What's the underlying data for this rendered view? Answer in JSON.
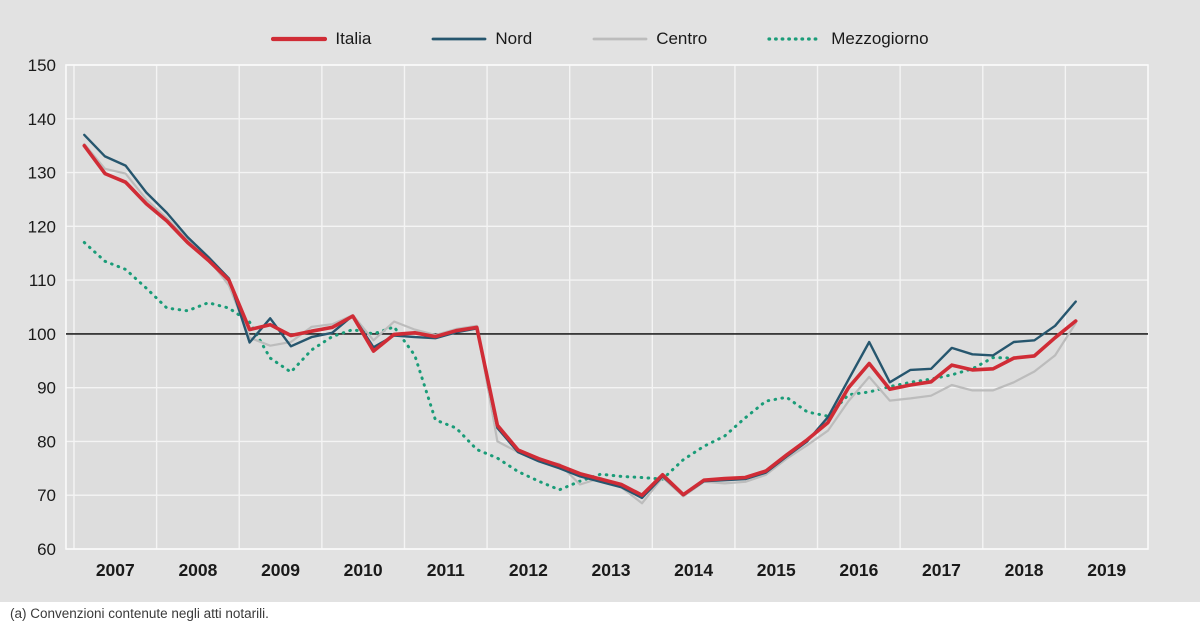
{
  "footnote": "(a) Convenzioni contenute negli atti notarili.",
  "colors": {
    "panel_bg": "#e2e2e2",
    "plot_bg": "#dddddd",
    "gridline": "#f4f4f4",
    "plot_border": "#fafafa",
    "baseline": "#000000",
    "axis_text": "#1a1a1a"
  },
  "chart_data": {
    "type": "line",
    "title": "",
    "xlabel": "",
    "ylabel": "",
    "x_years": [
      "2007",
      "2008",
      "2009",
      "2010",
      "2011",
      "2012",
      "2013",
      "2014",
      "2015",
      "2016",
      "2017",
      "2018",
      "2019"
    ],
    "x_frequency": "quarterly",
    "first_quarter": "2007-Q1",
    "last_quarter": "2019-Q1",
    "ylim": [
      60,
      150
    ],
    "y_ticks": [
      "150",
      "140",
      "130",
      "120",
      "110",
      "100",
      "90",
      "80",
      "70",
      "60"
    ],
    "baseline_value": 100,
    "grid": "on",
    "legend_position": "top-center",
    "series": [
      {
        "name": "Mezzogiorno",
        "color": "#1a9c78",
        "style": "dotted",
        "width": 3,
        "values": [
          117.0,
          113.5,
          112.0,
          108.5,
          104.8,
          104.3,
          105.8,
          104.8,
          102.2,
          95.5,
          92.9,
          97.0,
          99.5,
          100.8,
          100.0,
          101.3,
          96.0,
          84.0,
          82.5,
          78.5,
          76.9,
          74.4,
          72.6,
          71.0,
          72.6,
          73.9,
          73.5,
          73.3,
          73.0,
          76.6,
          79.1,
          81.0,
          84.4,
          87.5,
          88.2,
          85.5,
          84.7,
          88.7,
          89.2,
          90.2,
          91.0,
          91.6,
          92.4,
          93.5,
          95.6,
          95.5,
          95.9,
          99.3,
          102.4
        ]
      },
      {
        "name": "Centro",
        "color": "#bcbcbc",
        "style": "solid",
        "width": 2.2,
        "values": [
          135.3,
          130.7,
          129.8,
          125.0,
          121.5,
          117.5,
          114.0,
          109.0,
          99.3,
          97.8,
          98.5,
          101.3,
          101.8,
          103.5,
          98.8,
          102.3,
          100.8,
          99.8,
          100.9,
          101.5,
          80.0,
          78.0,
          76.5,
          75.8,
          72.0,
          73.2,
          71.5,
          68.5,
          73.3,
          69.8,
          72.5,
          72.2,
          72.5,
          73.8,
          76.8,
          79.3,
          82.0,
          87.5,
          92.0,
          87.6,
          88.0,
          88.5,
          90.5,
          89.5,
          89.5,
          91.0,
          93.0,
          96.0,
          102.0
        ]
      },
      {
        "name": "Nord",
        "color": "#26566e",
        "style": "solid",
        "width": 2.4,
        "values": [
          137.0,
          133.0,
          131.3,
          126.3,
          122.5,
          118.0,
          114.3,
          110.3,
          98.4,
          102.9,
          97.7,
          99.4,
          100.2,
          103.4,
          97.5,
          99.7,
          99.4,
          99.2,
          100.3,
          101.0,
          82.5,
          78.0,
          76.3,
          75.0,
          73.5,
          72.5,
          71.5,
          69.5,
          73.5,
          70.0,
          72.6,
          72.8,
          73.0,
          74.2,
          77.2,
          80.0,
          84.5,
          91.5,
          98.5,
          91.0,
          93.3,
          93.5,
          97.4,
          96.2,
          96.0,
          98.5,
          98.8,
          101.5,
          106.0
        ]
      },
      {
        "name": "Italia",
        "color": "#d02c36",
        "style": "solid",
        "width": 3.6,
        "values": [
          135.0,
          129.8,
          128.2,
          124.2,
          121.0,
          117.0,
          113.7,
          110.0,
          100.8,
          101.7,
          99.7,
          100.5,
          101.2,
          103.3,
          96.8,
          99.9,
          100.2,
          99.5,
          100.6,
          101.2,
          83.0,
          78.4,
          76.8,
          75.5,
          74.0,
          73.0,
          72.0,
          70.0,
          73.8,
          70.1,
          72.8,
          73.1,
          73.3,
          74.5,
          77.5,
          80.3,
          83.5,
          90.0,
          94.5,
          89.7,
          90.5,
          91.1,
          94.2,
          93.3,
          93.5,
          95.5,
          95.9,
          99.3,
          102.4
        ]
      }
    ],
    "legend_order": [
      "Italia",
      "Nord",
      "Centro",
      "Mezzogiorno"
    ]
  }
}
